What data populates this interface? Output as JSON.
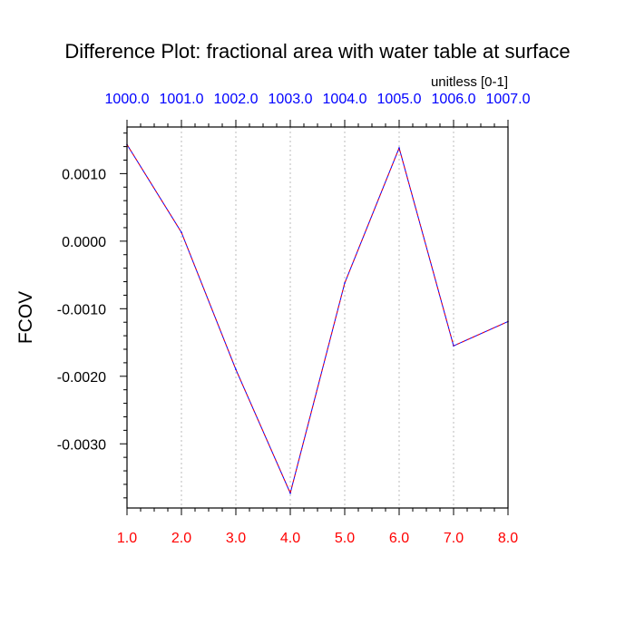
{
  "chart_data": {
    "type": "line",
    "title": "Difference Plot: fractional area with water table at surface",
    "units_label": "unitless [0-1]",
    "ylabel": "FCOV",
    "xlabel": "",
    "x": [
      1,
      2,
      3,
      4,
      5,
      6,
      7,
      8
    ],
    "x_tick_labels": [
      "1.0",
      "2.0",
      "3.0",
      "4.0",
      "5.0",
      "6.0",
      "7.0",
      "8.0"
    ],
    "top_tick_labels": [
      "1000.0",
      "1001.0",
      "1002.0",
      "1003.0",
      "1004.0",
      "1005.0",
      "1006.0",
      "1007.0"
    ],
    "y_tick_values": [
      0.001,
      0.0,
      -0.001,
      -0.002,
      -0.003
    ],
    "y_tick_labels": [
      "0.0010",
      "0.0000",
      "-0.0010",
      "-0.0020",
      "-0.0030"
    ],
    "series": [
      {
        "values": [
          0.00143,
          0.00013,
          -0.0019,
          -0.00373,
          -0.00062,
          0.00138,
          -0.00155,
          -0.00119
        ]
      }
    ],
    "xlim": [
      1,
      8
    ],
    "ylim": [
      -0.00395,
      0.00169
    ],
    "grid": "vertical dotted",
    "colors": {
      "line_primary": "#0000ff",
      "line_secondary": "#ff0000",
      "bottom_tick_labels": "#ff0000",
      "top_tick_labels": "#0000ff",
      "grid": "#bbbbbb"
    }
  }
}
